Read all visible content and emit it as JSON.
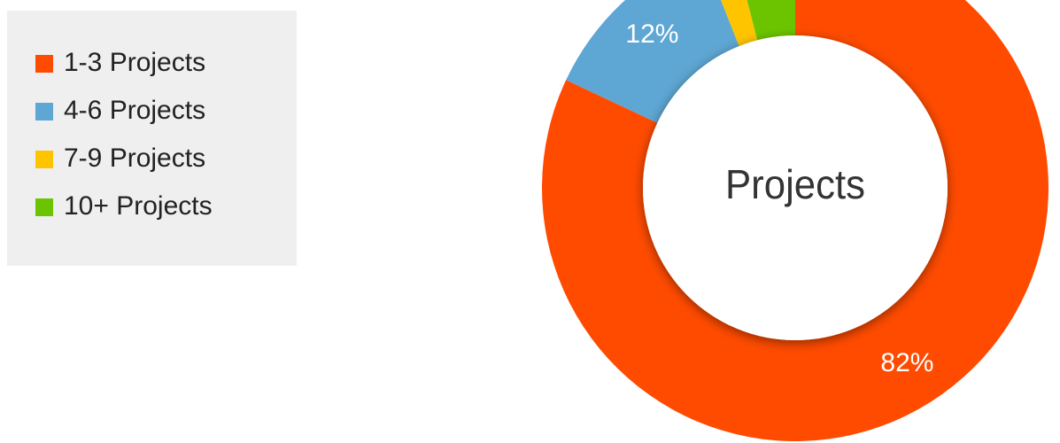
{
  "chart_data": {
    "type": "donut",
    "title": "Projects",
    "categories": [
      "1-3 Projects",
      "4-6 Projects",
      "7-9 Projects",
      "10+ Projects"
    ],
    "values": [
      82,
      12,
      2,
      4
    ],
    "value_labels": [
      "82%",
      "12%",
      null,
      null
    ],
    "colors": [
      "#ff4b00",
      "#5ea6d3",
      "#ffc400",
      "#6cc400"
    ],
    "legend": "left"
  }
}
